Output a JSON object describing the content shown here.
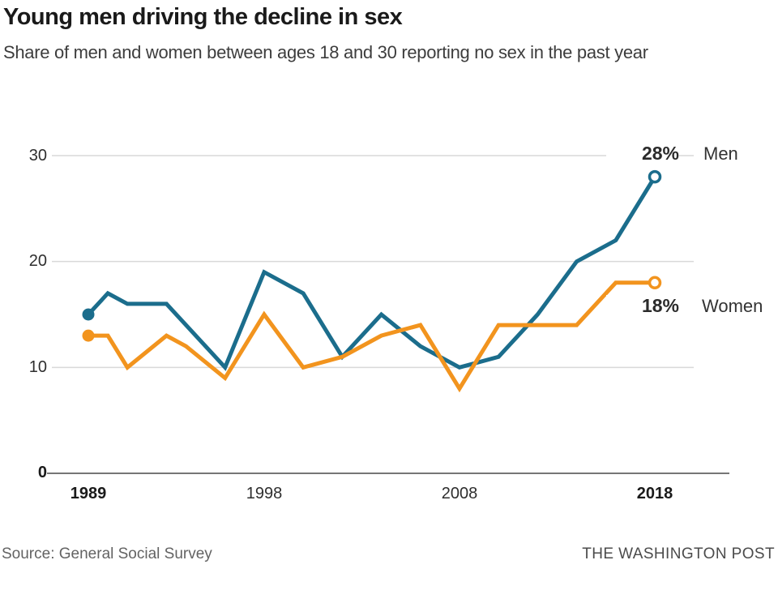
{
  "header": {
    "title": "Young men driving the decline in sex",
    "subtitle": "Share of men and women between ages 18 and 30 reporting no sex in the past year"
  },
  "chart_data": {
    "type": "line",
    "title": "Young men driving the decline in sex",
    "subtitle": "Share of men and women between ages 18 and 30 reporting no sex in the past year",
    "x": [
      1989,
      1990,
      1991,
      1993,
      1994,
      1996,
      1998,
      2000,
      2002,
      2004,
      2006,
      2008,
      2010,
      2012,
      2014,
      2016,
      2018
    ],
    "series": [
      {
        "name": "Men",
        "color": "#1b6d8c",
        "end_label": "28%",
        "values": [
          15,
          17,
          16,
          16,
          14,
          10,
          19,
          17,
          11,
          15,
          12,
          10,
          11,
          15,
          20,
          22,
          28
        ]
      },
      {
        "name": "Women",
        "color": "#f2941e",
        "end_label": "18%",
        "values": [
          13,
          13,
          10,
          13,
          12,
          9,
          15,
          10,
          11,
          13,
          14,
          8,
          14,
          14,
          14,
          18,
          18
        ]
      }
    ],
    "xlabel": "",
    "ylabel": "",
    "ylim": [
      0,
      30
    ],
    "xlim": [
      1989,
      2018
    ],
    "y_tick_labels": [
      "30",
      "20",
      "10",
      "0"
    ],
    "x_tick_labels": [
      "1989",
      "1998",
      "2008",
      "2018"
    ],
    "grid": "horizontal",
    "legend_position": "end-of-line labels, right side",
    "marker_start": "filled dot",
    "marker_end": "open circle"
  },
  "colors": {
    "men_line": "#1b6d8c",
    "women_line": "#f2941e",
    "gridline": "#d9d9d9",
    "zero_axis": "#767676",
    "title_text": "#1a1a1a",
    "subtitle_text": "#3d3d3d",
    "tick_text": "#2e2e2e",
    "value_label_text": "#2b2b2b",
    "series_name_text": "#333333",
    "source_text": "#636363",
    "brand_text": "#4b4b4b"
  },
  "footer": {
    "source": "Source: General Social Survey",
    "brand": "THE WASHINGTON POST"
  }
}
